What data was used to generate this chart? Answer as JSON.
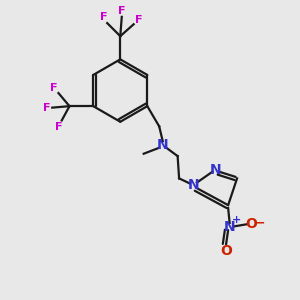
{
  "background_color": "#e8e8e8",
  "bond_color": "#1a1a1a",
  "N_color": "#3333cc",
  "F_color": "#cc00cc",
  "O_color": "#cc2200",
  "figsize": [
    3.0,
    3.0
  ],
  "dpi": 100,
  "xlim": [
    0,
    10
  ],
  "ylim": [
    0,
    10
  ]
}
